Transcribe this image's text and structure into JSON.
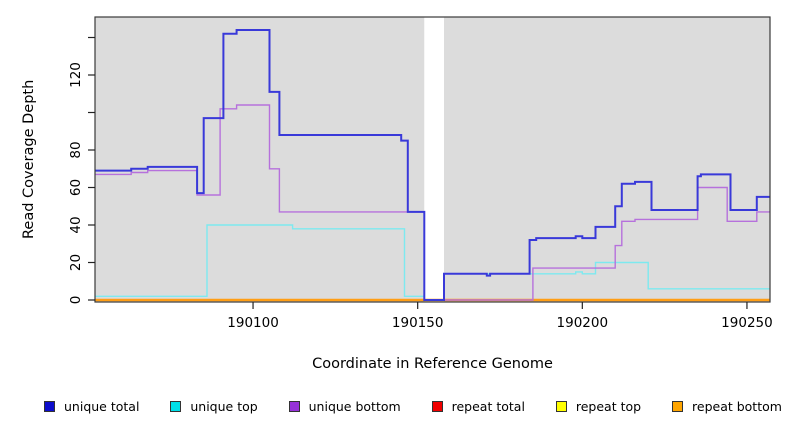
{
  "figure": {
    "y_axis_label": "Read Coverage Depth",
    "x_axis_label": "Coordinate in Reference Genome"
  },
  "legend": {
    "items": [
      {
        "label": "unique total",
        "color": "#0d0dcc"
      },
      {
        "label": "unique top",
        "color": "#00dfe8"
      },
      {
        "label": "unique bottom",
        "color": "#9632d8"
      },
      {
        "label": "repeat total",
        "color": "#f00000"
      },
      {
        "label": "repeat top",
        "color": "#ffff00"
      },
      {
        "label": "repeat bottom",
        "color": "#ffa500"
      }
    ]
  },
  "chart_data": {
    "type": "line",
    "subtype": "step-coverage",
    "title": "",
    "xlabel": "Coordinate in Reference Genome",
    "ylabel": "Read Coverage Depth",
    "x_range": [
      190052,
      190257
    ],
    "y_range": [
      0,
      152
    ],
    "x_ticks": [
      190100,
      190150,
      190200,
      190250
    ],
    "x_tick_labels": [
      "190100",
      "190150",
      "190200",
      "190250"
    ],
    "y_ticks": [
      0,
      20,
      40,
      60,
      80,
      100,
      120,
      140
    ],
    "y_tick_labels": [
      "0",
      "20",
      "40",
      "60",
      "80",
      "",
      "120",
      ""
    ],
    "plot_bg": "#dcdcdc",
    "grid": false,
    "legend_position": "bottom",
    "gap_region": {
      "from": 190152,
      "to": 190158,
      "color": "#ffffff"
    },
    "series": [
      {
        "name": "repeat total",
        "color": "#d03030",
        "width": 1.4,
        "steps": [
          [
            190052,
            0
          ]
        ],
        "x_end": 190257
      },
      {
        "name": "repeat top",
        "color": "#f0f000",
        "width": 1.4,
        "steps": [
          [
            190052,
            0
          ]
        ],
        "x_end": 190257
      },
      {
        "name": "repeat bottom",
        "color": "#ff9e15",
        "width": 2.4,
        "steps": [
          [
            190052,
            0
          ]
        ],
        "x_end": 190257
      },
      {
        "name": "unique top",
        "color": "#7de9ef",
        "width": 1.4,
        "steps": [
          [
            190052,
            2
          ],
          [
            190086,
            40
          ],
          [
            190112,
            38
          ],
          [
            190146,
            2
          ],
          [
            190152,
            0
          ],
          [
            190158,
            14
          ],
          [
            190198,
            15
          ],
          [
            190200,
            14
          ],
          [
            190204,
            20
          ],
          [
            190220,
            6
          ]
        ],
        "x_end": 190257
      },
      {
        "name": "unique bottom",
        "color": "#b671dc",
        "width": 1.4,
        "steps": [
          [
            190052,
            67
          ],
          [
            190063,
            68
          ],
          [
            190068,
            69
          ],
          [
            190083,
            56
          ],
          [
            190090,
            102
          ],
          [
            190095,
            104
          ],
          [
            190105,
            70
          ],
          [
            190108,
            47
          ],
          [
            190152,
            0
          ],
          [
            190185,
            17
          ],
          [
            190210,
            29
          ],
          [
            190212,
            42
          ],
          [
            190216,
            43
          ],
          [
            190235,
            60
          ],
          [
            190244,
            42
          ],
          [
            190253,
            47
          ]
        ],
        "x_end": 190257
      },
      {
        "name": "unique total",
        "color": "#3939d9",
        "width": 2,
        "steps": [
          [
            190052,
            69
          ],
          [
            190063,
            70
          ],
          [
            190068,
            71
          ],
          [
            190083,
            57
          ],
          [
            190085,
            97
          ],
          [
            190091,
            142
          ],
          [
            190095,
            144
          ],
          [
            190105,
            111
          ],
          [
            190108,
            88
          ],
          [
            190145,
            85
          ],
          [
            190147,
            47
          ],
          [
            190152,
            0
          ],
          [
            190158,
            14
          ],
          [
            190171,
            13
          ],
          [
            190172,
            14
          ],
          [
            190184,
            32
          ],
          [
            190186,
            33
          ],
          [
            190198,
            34
          ],
          [
            190200,
            33
          ],
          [
            190204,
            39
          ],
          [
            190210,
            50
          ],
          [
            190212,
            62
          ],
          [
            190216,
            63
          ],
          [
            190221,
            48
          ],
          [
            190235,
            66
          ],
          [
            190236,
            67
          ],
          [
            190245,
            48
          ],
          [
            190253,
            55
          ]
        ],
        "x_end": 190257
      }
    ]
  }
}
